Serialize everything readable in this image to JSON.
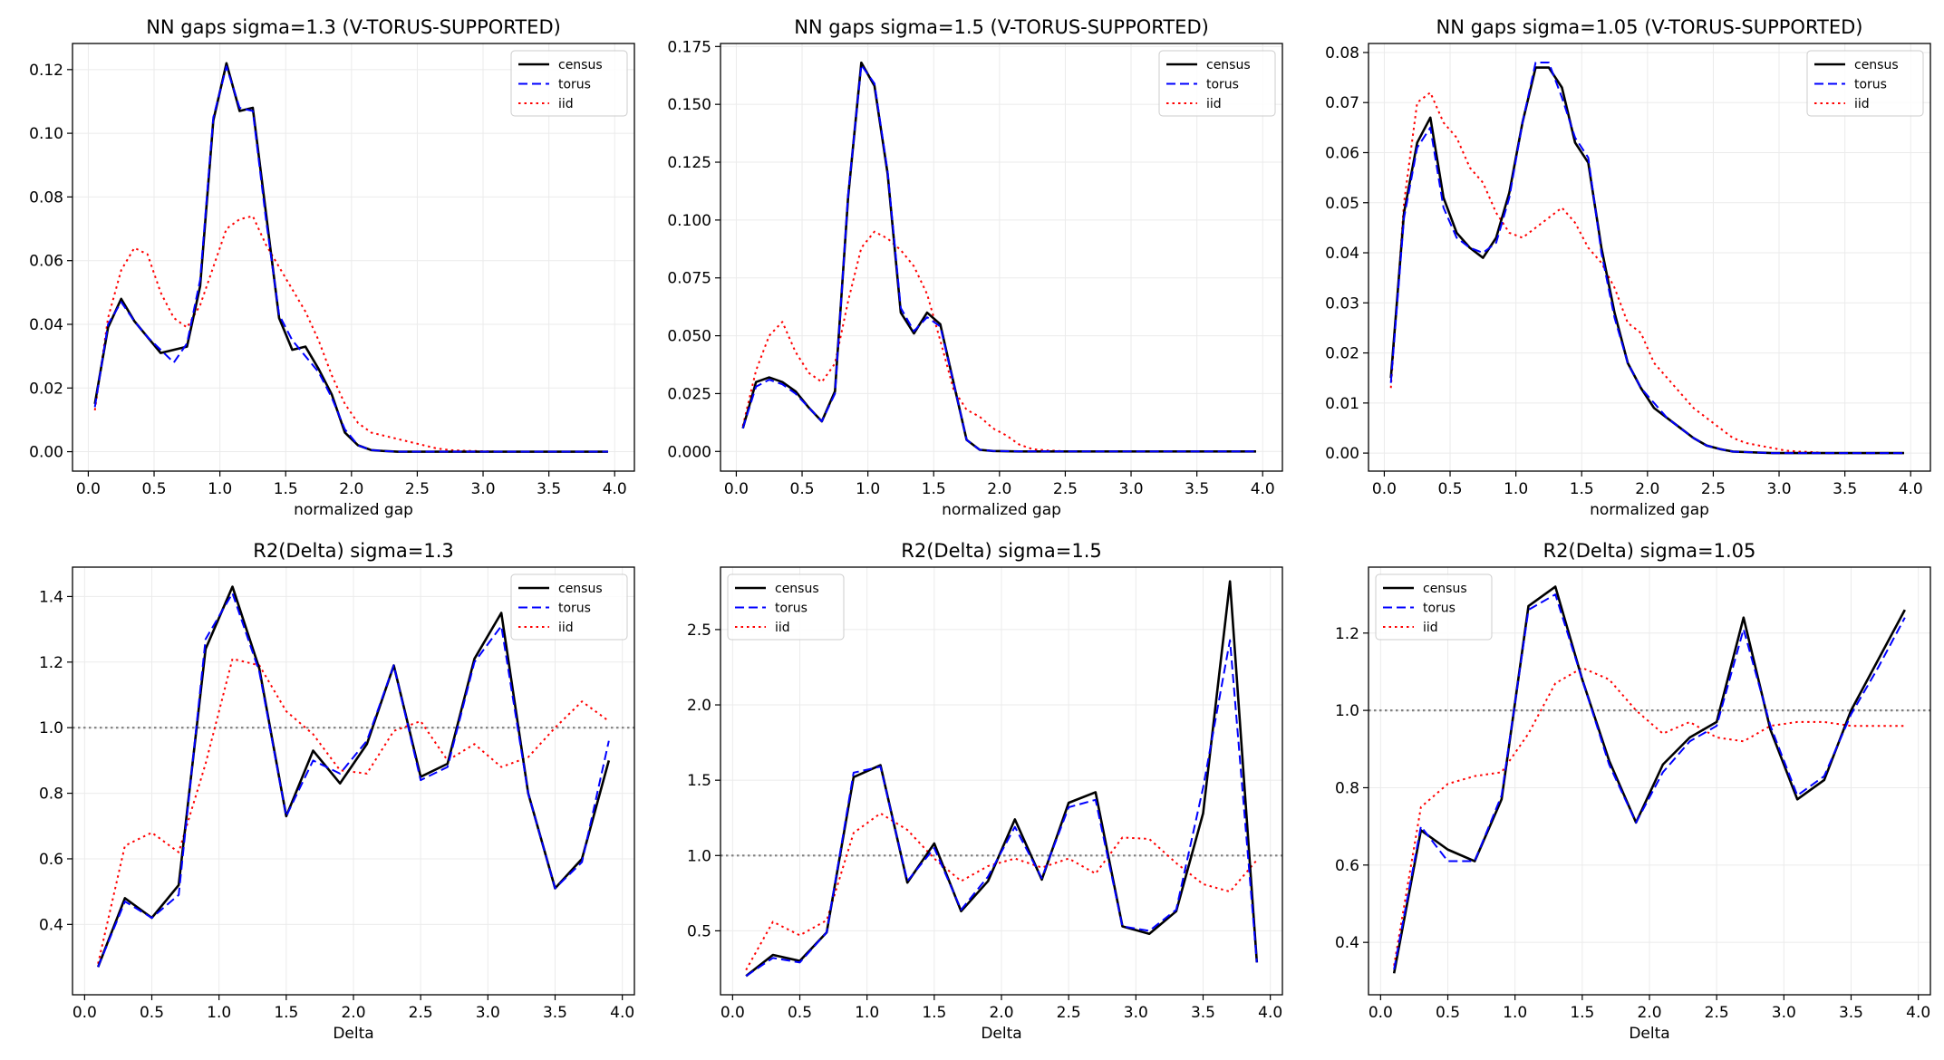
{
  "chart_data": [
    {
      "type": "line",
      "title": "NN gaps sigma=1.3 (V-TORUS-SUPPORTED)",
      "xlabel": "normalized gap",
      "ylabel": "",
      "xlim": [
        -0.12,
        4.15
      ],
      "ylim": [
        -0.0061,
        0.1282
      ],
      "xticks": [
        0,
        0.5,
        1,
        1.5,
        2,
        2.5,
        3,
        3.5,
        4
      ],
      "yticks": [
        0,
        0.02,
        0.04,
        0.06,
        0.08,
        0.1,
        0.12
      ],
      "ytick_labels": [
        "0.00",
        "0.02",
        "0.04",
        "0.06",
        "0.08",
        "0.10",
        "0.12"
      ],
      "grid": true,
      "legend": "top-right",
      "hline": null,
      "x": [
        0.05,
        0.15,
        0.25,
        0.35,
        0.45,
        0.55,
        0.65,
        0.75,
        0.85,
        0.95,
        1.05,
        1.15,
        1.25,
        1.35,
        1.45,
        1.55,
        1.65,
        1.75,
        1.85,
        1.95,
        2.05,
        2.15,
        2.25,
        2.35,
        2.45,
        2.55,
        2.65,
        2.75,
        2.85,
        2.95,
        3.05,
        3.15,
        3.25,
        3.35,
        3.45,
        3.55,
        3.65,
        3.75,
        3.85,
        3.95
      ],
      "series": [
        {
          "name": "census",
          "color": "#000000",
          "style": "solid",
          "values": [
            0.015,
            0.039,
            0.048,
            0.041,
            0.036,
            0.031,
            0.032,
            0.033,
            0.052,
            0.104,
            0.122,
            0.107,
            0.108,
            0.075,
            0.042,
            0.032,
            0.033,
            0.026,
            0.018,
            0.006,
            0.002,
            0.0005,
            0.0002,
            0,
            0,
            0,
            0,
            0,
            0,
            0,
            0,
            0,
            0,
            0,
            0,
            0,
            0,
            0,
            0,
            0
          ]
        },
        {
          "name": "torus",
          "color": "#0000ff",
          "style": "dashed",
          "values": [
            0.014,
            0.04,
            0.047,
            0.041,
            0.036,
            0.032,
            0.028,
            0.034,
            0.054,
            0.105,
            0.121,
            0.108,
            0.107,
            0.073,
            0.043,
            0.035,
            0.03,
            0.025,
            0.017,
            0.007,
            0.002,
            0.0005,
            0.0002,
            0,
            0,
            0,
            0,
            0,
            0,
            0,
            0,
            0,
            0,
            0,
            0,
            0,
            0,
            0,
            0,
            0
          ]
        },
        {
          "name": "iid",
          "color": "#ff0000",
          "style": "dotted",
          "values": [
            0.013,
            0.042,
            0.057,
            0.064,
            0.062,
            0.05,
            0.042,
            0.039,
            0.046,
            0.058,
            0.07,
            0.073,
            0.074,
            0.065,
            0.058,
            0.051,
            0.044,
            0.035,
            0.024,
            0.015,
            0.009,
            0.006,
            0.005,
            0.004,
            0.003,
            0.002,
            0.001,
            0.0005,
            0.0003,
            0.0002,
            0.0001,
            0,
            0,
            0,
            0,
            0,
            0,
            0,
            0,
            0
          ]
        }
      ]
    },
    {
      "type": "line",
      "title": "NN gaps sigma=1.5 (V-TORUS-SUPPORTED)",
      "xlabel": "normalized gap",
      "ylabel": "",
      "xlim": [
        -0.12,
        4.15
      ],
      "ylim": [
        -0.0085,
        0.1763
      ],
      "xticks": [
        0,
        0.5,
        1,
        1.5,
        2,
        2.5,
        3,
        3.5,
        4
      ],
      "yticks": [
        0,
        0.025,
        0.05,
        0.075,
        0.1,
        0.125,
        0.15,
        0.175
      ],
      "ytick_labels": [
        "0.000",
        "0.025",
        "0.050",
        "0.075",
        "0.100",
        "0.125",
        "0.150",
        "0.175"
      ],
      "grid": true,
      "legend": "top-right",
      "hline": null,
      "x": [
        0.05,
        0.15,
        0.25,
        0.35,
        0.45,
        0.55,
        0.65,
        0.75,
        0.85,
        0.95,
        1.05,
        1.15,
        1.25,
        1.35,
        1.45,
        1.55,
        1.65,
        1.75,
        1.85,
        1.95,
        2.05,
        2.15,
        2.25,
        2.35,
        2.45,
        2.55,
        2.65,
        2.75,
        2.85,
        2.95,
        3.05,
        3.15,
        3.25,
        3.35,
        3.45,
        3.55,
        3.65,
        3.75,
        3.85,
        3.95
      ],
      "series": [
        {
          "name": "census",
          "color": "#000000",
          "style": "solid",
          "values": [
            0.01,
            0.03,
            0.032,
            0.03,
            0.026,
            0.019,
            0.013,
            0.026,
            0.11,
            0.168,
            0.158,
            0.12,
            0.06,
            0.051,
            0.06,
            0.055,
            0.03,
            0.005,
            0.0007,
            0.0002,
            0.0001,
            0,
            0,
            0,
            0,
            0,
            0,
            0,
            0,
            0,
            0,
            0,
            0,
            0,
            0,
            0,
            0,
            0,
            0,
            0
          ]
        },
        {
          "name": "torus",
          "color": "#0000ff",
          "style": "dashed",
          "values": [
            0.01,
            0.028,
            0.031,
            0.029,
            0.025,
            0.019,
            0.013,
            0.025,
            0.111,
            0.167,
            0.159,
            0.121,
            0.062,
            0.052,
            0.058,
            0.054,
            0.03,
            0.005,
            0.0007,
            0.0002,
            0.0001,
            0,
            0,
            0,
            0,
            0,
            0,
            0,
            0,
            0,
            0,
            0,
            0,
            0,
            0,
            0,
            0,
            0,
            0,
            0
          ]
        },
        {
          "name": "iid",
          "color": "#ff0000",
          "style": "dotted",
          "values": [
            0.011,
            0.035,
            0.05,
            0.056,
            0.043,
            0.034,
            0.03,
            0.038,
            0.065,
            0.088,
            0.095,
            0.092,
            0.087,
            0.08,
            0.068,
            0.048,
            0.027,
            0.018,
            0.015,
            0.01,
            0.007,
            0.003,
            0.001,
            0.0005,
            0.0002,
            0,
            0,
            0,
            0,
            0,
            0,
            0,
            0,
            0,
            0,
            0,
            0,
            0,
            0,
            0
          ]
        }
      ]
    },
    {
      "type": "line",
      "title": "NN gaps sigma=1.05 (V-TORUS-SUPPORTED)",
      "xlabel": "normalized gap",
      "ylabel": "",
      "xlim": [
        -0.12,
        4.15
      ],
      "ylim": [
        -0.0036,
        0.0818
      ],
      "xticks": [
        0,
        0.5,
        1,
        1.5,
        2,
        2.5,
        3,
        3.5,
        4
      ],
      "yticks": [
        0,
        0.01,
        0.02,
        0.03,
        0.04,
        0.05,
        0.06,
        0.07,
        0.08
      ],
      "ytick_labels": [
        "0.00",
        "0.01",
        "0.02",
        "0.03",
        "0.04",
        "0.05",
        "0.06",
        "0.07",
        "0.08"
      ],
      "grid": true,
      "legend": "top-right",
      "hline": null,
      "x": [
        0.05,
        0.15,
        0.25,
        0.35,
        0.45,
        0.55,
        0.65,
        0.75,
        0.85,
        0.95,
        1.05,
        1.15,
        1.25,
        1.35,
        1.45,
        1.55,
        1.65,
        1.75,
        1.85,
        1.95,
        2.05,
        2.15,
        2.25,
        2.35,
        2.45,
        2.55,
        2.65,
        2.75,
        2.85,
        2.95,
        3.05,
        3.15,
        3.25,
        3.35,
        3.45,
        3.55,
        3.65,
        3.75,
        3.85,
        3.95
      ],
      "series": [
        {
          "name": "census",
          "color": "#000000",
          "style": "solid",
          "values": [
            0.015,
            0.048,
            0.062,
            0.067,
            0.051,
            0.044,
            0.041,
            0.039,
            0.043,
            0.052,
            0.066,
            0.077,
            0.077,
            0.073,
            0.062,
            0.058,
            0.041,
            0.028,
            0.018,
            0.013,
            0.009,
            0.007,
            0.005,
            0.003,
            0.0015,
            0.0008,
            0.0003,
            0.0002,
            0.0001,
            0,
            0,
            0,
            0,
            0,
            0,
            0,
            0,
            0,
            0,
            0
          ]
        },
        {
          "name": "torus",
          "color": "#0000ff",
          "style": "dashed",
          "values": [
            0.014,
            0.047,
            0.061,
            0.065,
            0.049,
            0.043,
            0.041,
            0.04,
            0.042,
            0.051,
            0.066,
            0.078,
            0.078,
            0.071,
            0.063,
            0.059,
            0.04,
            0.027,
            0.018,
            0.013,
            0.01,
            0.007,
            0.005,
            0.003,
            0.0015,
            0.0008,
            0.0003,
            0.0002,
            0.0001,
            0,
            0,
            0,
            0,
            0,
            0,
            0,
            0,
            0,
            0,
            0
          ]
        },
        {
          "name": "iid",
          "color": "#ff0000",
          "style": "dotted",
          "values": [
            0.013,
            0.05,
            0.07,
            0.072,
            0.066,
            0.063,
            0.057,
            0.054,
            0.048,
            0.044,
            0.043,
            0.045,
            0.047,
            0.049,
            0.046,
            0.041,
            0.038,
            0.033,
            0.026,
            0.024,
            0.018,
            0.015,
            0.012,
            0.009,
            0.007,
            0.005,
            0.003,
            0.002,
            0.0015,
            0.001,
            0.0005,
            0.0003,
            0.0002,
            0,
            0,
            0,
            0,
            0,
            0,
            0
          ]
        }
      ]
    },
    {
      "type": "line",
      "title": "R2(Delta) sigma=1.3",
      "xlabel": "Delta",
      "ylabel": "",
      "xlim": [
        -0.09,
        4.09
      ],
      "ylim": [
        0.1854,
        1.4896
      ],
      "xticks": [
        0,
        0.5,
        1,
        1.5,
        2,
        2.5,
        3,
        3.5,
        4
      ],
      "yticks": [
        0.4,
        0.6,
        0.8,
        1.0,
        1.2,
        1.4
      ],
      "ytick_labels": [
        "0.4",
        "0.6",
        "0.8",
        "1.0",
        "1.2",
        "1.4"
      ],
      "grid": true,
      "legend": "top-right",
      "hline": 1.0,
      "x": [
        0.1,
        0.3,
        0.5,
        0.7,
        0.9,
        1.1,
        1.3,
        1.5,
        1.7,
        1.9,
        2.1,
        2.3,
        2.5,
        2.7,
        2.9,
        3.1,
        3.3,
        3.5,
        3.7,
        3.9
      ],
      "series": [
        {
          "name": "census",
          "color": "#000000",
          "style": "solid",
          "values": [
            0.27,
            0.48,
            0.42,
            0.52,
            1.24,
            1.43,
            1.18,
            0.73,
            0.93,
            0.83,
            0.95,
            1.19,
            0.85,
            0.89,
            1.21,
            1.35,
            0.8,
            0.51,
            0.6,
            0.9
          ]
        },
        {
          "name": "torus",
          "color": "#0000ff",
          "style": "dashed",
          "values": [
            0.27,
            0.47,
            0.42,
            0.49,
            1.27,
            1.41,
            1.17,
            0.73,
            0.9,
            0.86,
            0.96,
            1.19,
            0.84,
            0.88,
            1.2,
            1.31,
            0.8,
            0.51,
            0.59,
            0.96
          ]
        },
        {
          "name": "iid",
          "color": "#ff0000",
          "style": "dotted",
          "values": [
            0.28,
            0.64,
            0.68,
            0.62,
            0.89,
            1.21,
            1.19,
            1.05,
            0.98,
            0.87,
            0.86,
            0.99,
            1.02,
            0.9,
            0.95,
            0.88,
            0.91,
            1.0,
            1.08,
            1.02
          ]
        }
      ]
    },
    {
      "type": "line",
      "title": "R2(Delta) sigma=1.5",
      "xlabel": "Delta",
      "ylabel": "",
      "xlim": [
        -0.09,
        4.09
      ],
      "ylim": [
        0.0755,
        2.9145
      ],
      "xticks": [
        0,
        0.5,
        1,
        1.5,
        2,
        2.5,
        3,
        3.5,
        4
      ],
      "yticks": [
        0.5,
        1.0,
        1.5,
        2.0,
        2.5
      ],
      "ytick_labels": [
        "0.5",
        "1.0",
        "1.5",
        "2.0",
        "2.5"
      ],
      "grid": true,
      "legend": "top-left",
      "hline": 1.0,
      "x": [
        0.1,
        0.3,
        0.5,
        0.7,
        0.9,
        1.1,
        1.3,
        1.5,
        1.7,
        1.9,
        2.1,
        2.3,
        2.5,
        2.7,
        2.9,
        3.1,
        3.3,
        3.5,
        3.7,
        3.9
      ],
      "series": [
        {
          "name": "census",
          "color": "#000000",
          "style": "solid",
          "values": [
            0.2,
            0.34,
            0.3,
            0.49,
            1.52,
            1.6,
            0.82,
            1.08,
            0.63,
            0.83,
            1.24,
            0.84,
            1.35,
            1.42,
            0.53,
            0.48,
            0.63,
            1.28,
            2.82,
            0.29
          ]
        },
        {
          "name": "torus",
          "color": "#0000ff",
          "style": "dashed",
          "values": [
            0.2,
            0.32,
            0.29,
            0.49,
            1.55,
            1.59,
            0.83,
            1.05,
            0.64,
            0.86,
            1.19,
            0.85,
            1.32,
            1.37,
            0.53,
            0.5,
            0.64,
            1.45,
            2.43,
            0.29
          ]
        },
        {
          "name": "iid",
          "color": "#ff0000",
          "style": "dotted",
          "values": [
            0.24,
            0.56,
            0.47,
            0.57,
            1.15,
            1.28,
            1.17,
            0.98,
            0.83,
            0.93,
            0.98,
            0.92,
            0.98,
            0.88,
            1.12,
            1.11,
            0.95,
            0.81,
            0.76,
            0.97
          ]
        }
      ]
    },
    {
      "type": "line",
      "title": "R2(Delta) sigma=1.05",
      "xlabel": "Delta",
      "ylabel": "",
      "xlim": [
        -0.09,
        4.09
      ],
      "ylim": [
        0.2645,
        1.3705
      ],
      "xticks": [
        0,
        0.5,
        1,
        1.5,
        2,
        2.5,
        3,
        3.5,
        4
      ],
      "yticks": [
        0.4,
        0.6,
        0.8,
        1.0,
        1.2
      ],
      "ytick_labels": [
        "0.4",
        "0.6",
        "0.8",
        "1.0",
        "1.2"
      ],
      "grid": true,
      "legend": "top-left",
      "hline": 1.0,
      "x": [
        0.1,
        0.3,
        0.5,
        0.7,
        0.9,
        1.1,
        1.3,
        1.5,
        1.7,
        1.9,
        2.1,
        2.3,
        2.5,
        2.7,
        2.9,
        3.1,
        3.3,
        3.5,
        3.7,
        3.9
      ],
      "series": [
        {
          "name": "census",
          "color": "#000000",
          "style": "solid",
          "values": [
            0.32,
            0.69,
            0.64,
            0.61,
            0.77,
            1.27,
            1.32,
            1.08,
            0.87,
            0.71,
            0.86,
            0.93,
            0.97,
            1.24,
            0.95,
            0.77,
            0.82,
            1.0,
            1.13,
            1.26
          ]
        },
        {
          "name": "torus",
          "color": "#0000ff",
          "style": "dashed",
          "values": [
            0.33,
            0.7,
            0.61,
            0.61,
            0.78,
            1.26,
            1.3,
            1.08,
            0.86,
            0.71,
            0.84,
            0.92,
            0.96,
            1.21,
            0.96,
            0.78,
            0.83,
            0.99,
            1.11,
            1.24
          ]
        },
        {
          "name": "iid",
          "color": "#ff0000",
          "style": "dotted",
          "values": [
            0.34,
            0.75,
            0.81,
            0.83,
            0.84,
            0.94,
            1.07,
            1.11,
            1.08,
            1.0,
            0.94,
            0.97,
            0.93,
            0.92,
            0.96,
            0.97,
            0.97,
            0.96,
            0.96,
            0.96
          ]
        }
      ]
    }
  ]
}
